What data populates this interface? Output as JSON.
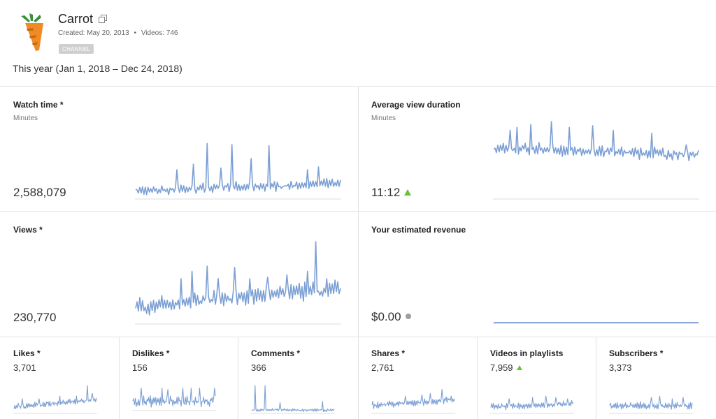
{
  "channel": {
    "name": "Carrot",
    "created": "Created: May 20, 2013",
    "separator": "•",
    "videos": "Videos: 746",
    "badge": "CHANNEL",
    "date_range": "This year (Jan 1, 2018 – Dec 24, 2018)"
  },
  "colors": {
    "line": "#7b9fd4",
    "baseline": "#dddddd",
    "up": "#67c23a",
    "neutral": "#9e9e9e",
    "carrot_orange": "#f08a24",
    "carrot_leaf": "#3b8f3b"
  },
  "cards": {
    "watch_time": {
      "title": "Watch time *",
      "unit": "Minutes",
      "value": "2,588,079"
    },
    "avg_duration": {
      "title": "Average view duration",
      "unit": "Minutes",
      "value": "11:12",
      "trend": "up"
    },
    "views": {
      "title": "Views *",
      "value": "230,770"
    },
    "revenue": {
      "title": "Your estimated revenue",
      "value": "$0.00",
      "trend": "neutral"
    },
    "likes": {
      "title": "Likes *",
      "value": "3,701"
    },
    "dislikes": {
      "title": "Dislikes *",
      "value": "156"
    },
    "comments": {
      "title": "Comments *",
      "value": "366"
    },
    "shares": {
      "title": "Shares *",
      "value": "2,761"
    },
    "playlists": {
      "title": "Videos in playlists",
      "value": "7,959",
      "trend": "up"
    },
    "subscribers": {
      "title": "Subscribers *",
      "value": "3,373"
    }
  }
}
